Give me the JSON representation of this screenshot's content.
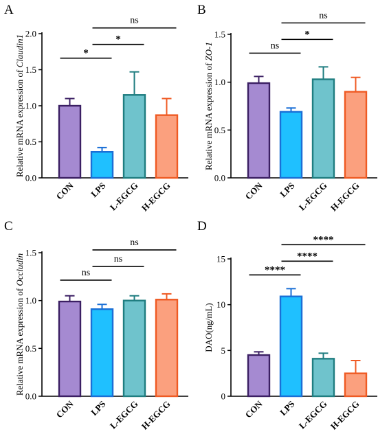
{
  "chart_data": [
    {
      "panel": "A",
      "type": "bar",
      "ylabel_prefix": "Relative mRNA expression of ",
      "ylabel_gene": "Claudin1",
      "categories": [
        "CON",
        "LPS",
        "L-EGCG",
        "H-EGCG"
      ],
      "values": [
        1.0,
        0.36,
        1.15,
        0.87
      ],
      "errors": [
        0.1,
        0.06,
        0.32,
        0.23
      ],
      "ylim": [
        0,
        2.0
      ],
      "yticks": [
        "0.0",
        "0.5",
        "1.0",
        "1.5",
        "2.0"
      ],
      "comparisons": [
        {
          "from": "CON",
          "to": "LPS",
          "label": "*"
        },
        {
          "from": "LPS",
          "to": "L-EGCG",
          "label": "*"
        },
        {
          "from": "LPS",
          "to": "H-EGCG",
          "label": "ns"
        }
      ]
    },
    {
      "panel": "B",
      "type": "bar",
      "ylabel_prefix": "Relative mRNA expression of ",
      "ylabel_gene": "ZO-1",
      "categories": [
        "CON",
        "LPS",
        "L-EGCG",
        "H-EGCG"
      ],
      "values": [
        0.99,
        0.69,
        1.03,
        0.9
      ],
      "errors": [
        0.07,
        0.04,
        0.13,
        0.15
      ],
      "ylim": [
        0,
        1.5
      ],
      "yticks": [
        "0.0",
        "0.5",
        "1.0",
        "1.5"
      ],
      "comparisons": [
        {
          "from": "CON",
          "to": "LPS",
          "label": "ns"
        },
        {
          "from": "LPS",
          "to": "L-EGCG",
          "label": "*"
        },
        {
          "from": "LPS",
          "to": "H-EGCG",
          "label": "ns"
        }
      ]
    },
    {
      "panel": "C",
      "type": "bar",
      "ylabel_prefix": "Relative mRNA expression of ",
      "ylabel_gene": "Occludin",
      "categories": [
        "CON",
        "LPS",
        "L-EGCG",
        "H-EGCG"
      ],
      "values": [
        0.99,
        0.91,
        1.0,
        1.01
      ],
      "errors": [
        0.06,
        0.05,
        0.05,
        0.06
      ],
      "ylim": [
        0,
        1.5
      ],
      "yticks": [
        "0.0",
        "0.5",
        "1.0",
        "1.5"
      ],
      "comparisons": [
        {
          "from": "CON",
          "to": "LPS",
          "label": "ns"
        },
        {
          "from": "LPS",
          "to": "L-EGCG",
          "label": "ns"
        },
        {
          "from": "LPS",
          "to": "H-EGCG",
          "label": "ns"
        }
      ]
    },
    {
      "panel": "D",
      "type": "bar",
      "ylabel_prefix": "DAO(ng/mL)",
      "ylabel_gene": "",
      "categories": [
        "CON",
        "LPS",
        "L-EGCG",
        "H-EGCG"
      ],
      "values": [
        4.5,
        10.9,
        4.1,
        2.5
      ],
      "errors": [
        0.35,
        0.85,
        0.6,
        1.4
      ],
      "ylim": [
        0,
        15
      ],
      "yticks": [
        "0",
        "5",
        "10",
        "15"
      ],
      "comparisons": [
        {
          "from": "CON",
          "to": "LPS",
          "label": "****"
        },
        {
          "from": "LPS",
          "to": "L-EGCG",
          "label": "****"
        },
        {
          "from": "LPS",
          "to": "H-EGCG",
          "label": "****"
        }
      ]
    }
  ],
  "colors": {
    "fills": [
      "#a58ad1",
      "#1fc0ff",
      "#6fc3cc",
      "#fba07e"
    ],
    "edges": [
      "#3b1f63",
      "#1a6fd6",
      "#1f7d80",
      "#ef5a23"
    ]
  }
}
